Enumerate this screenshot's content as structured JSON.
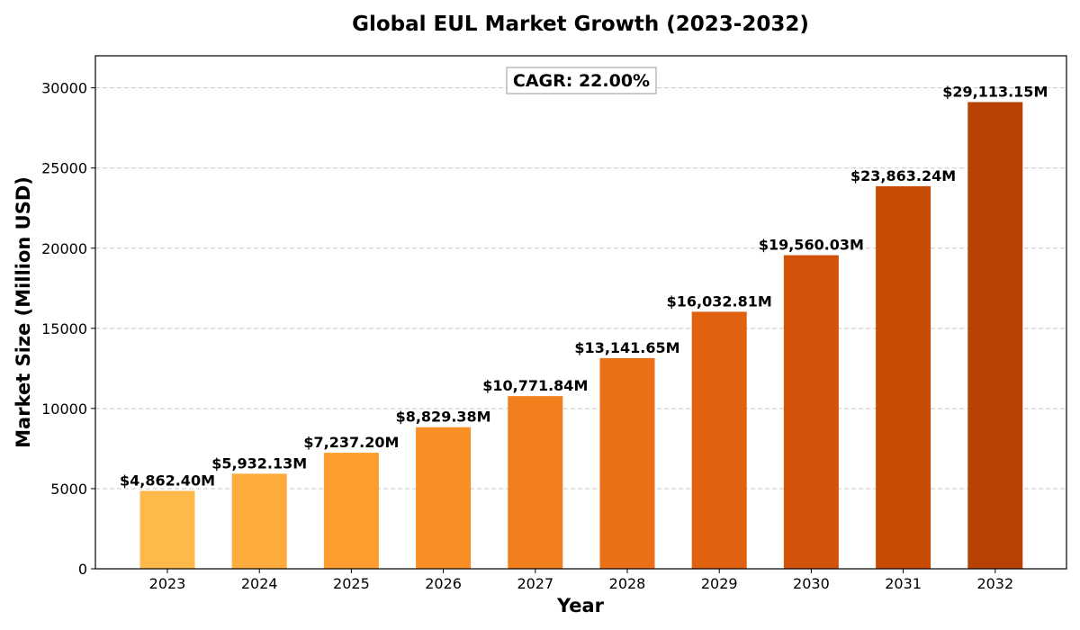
{
  "chart_data": {
    "type": "bar",
    "title": "Global EUL Market Growth (2023-2032)",
    "xlabel": "Year",
    "ylabel": "Market Size (Million USD)",
    "categories": [
      "2023",
      "2024",
      "2025",
      "2026",
      "2027",
      "2028",
      "2029",
      "2030",
      "2031",
      "2032"
    ],
    "values": [
      4862.4,
      5932.13,
      7237.2,
      8829.38,
      10771.84,
      13141.65,
      16032.81,
      19560.03,
      23863.24,
      29113.15
    ],
    "value_labels": [
      "$4,862.40M",
      "$5,932.13M",
      "$7,237.20M",
      "$8,829.38M",
      "$10,771.84M",
      "$13,141.65M",
      "$16,032.81M",
      "$19,560.03M",
      "$23,863.24M",
      "$29,113.15M"
    ],
    "yticks": [
      "0",
      "5000",
      "10000",
      "15000",
      "20000",
      "25000",
      "30000"
    ],
    "ylim": [
      0,
      32000
    ],
    "grid": "y-dashed",
    "annotation": "CAGR: 22.00%",
    "bar_colors": [
      "#FDBA4B",
      "#FDAC3B",
      "#FC9D2D",
      "#F98E24",
      "#F27F1E",
      "#EA6F16",
      "#E0610F",
      "#D3530A",
      "#C74B02",
      "#B84204"
    ]
  }
}
